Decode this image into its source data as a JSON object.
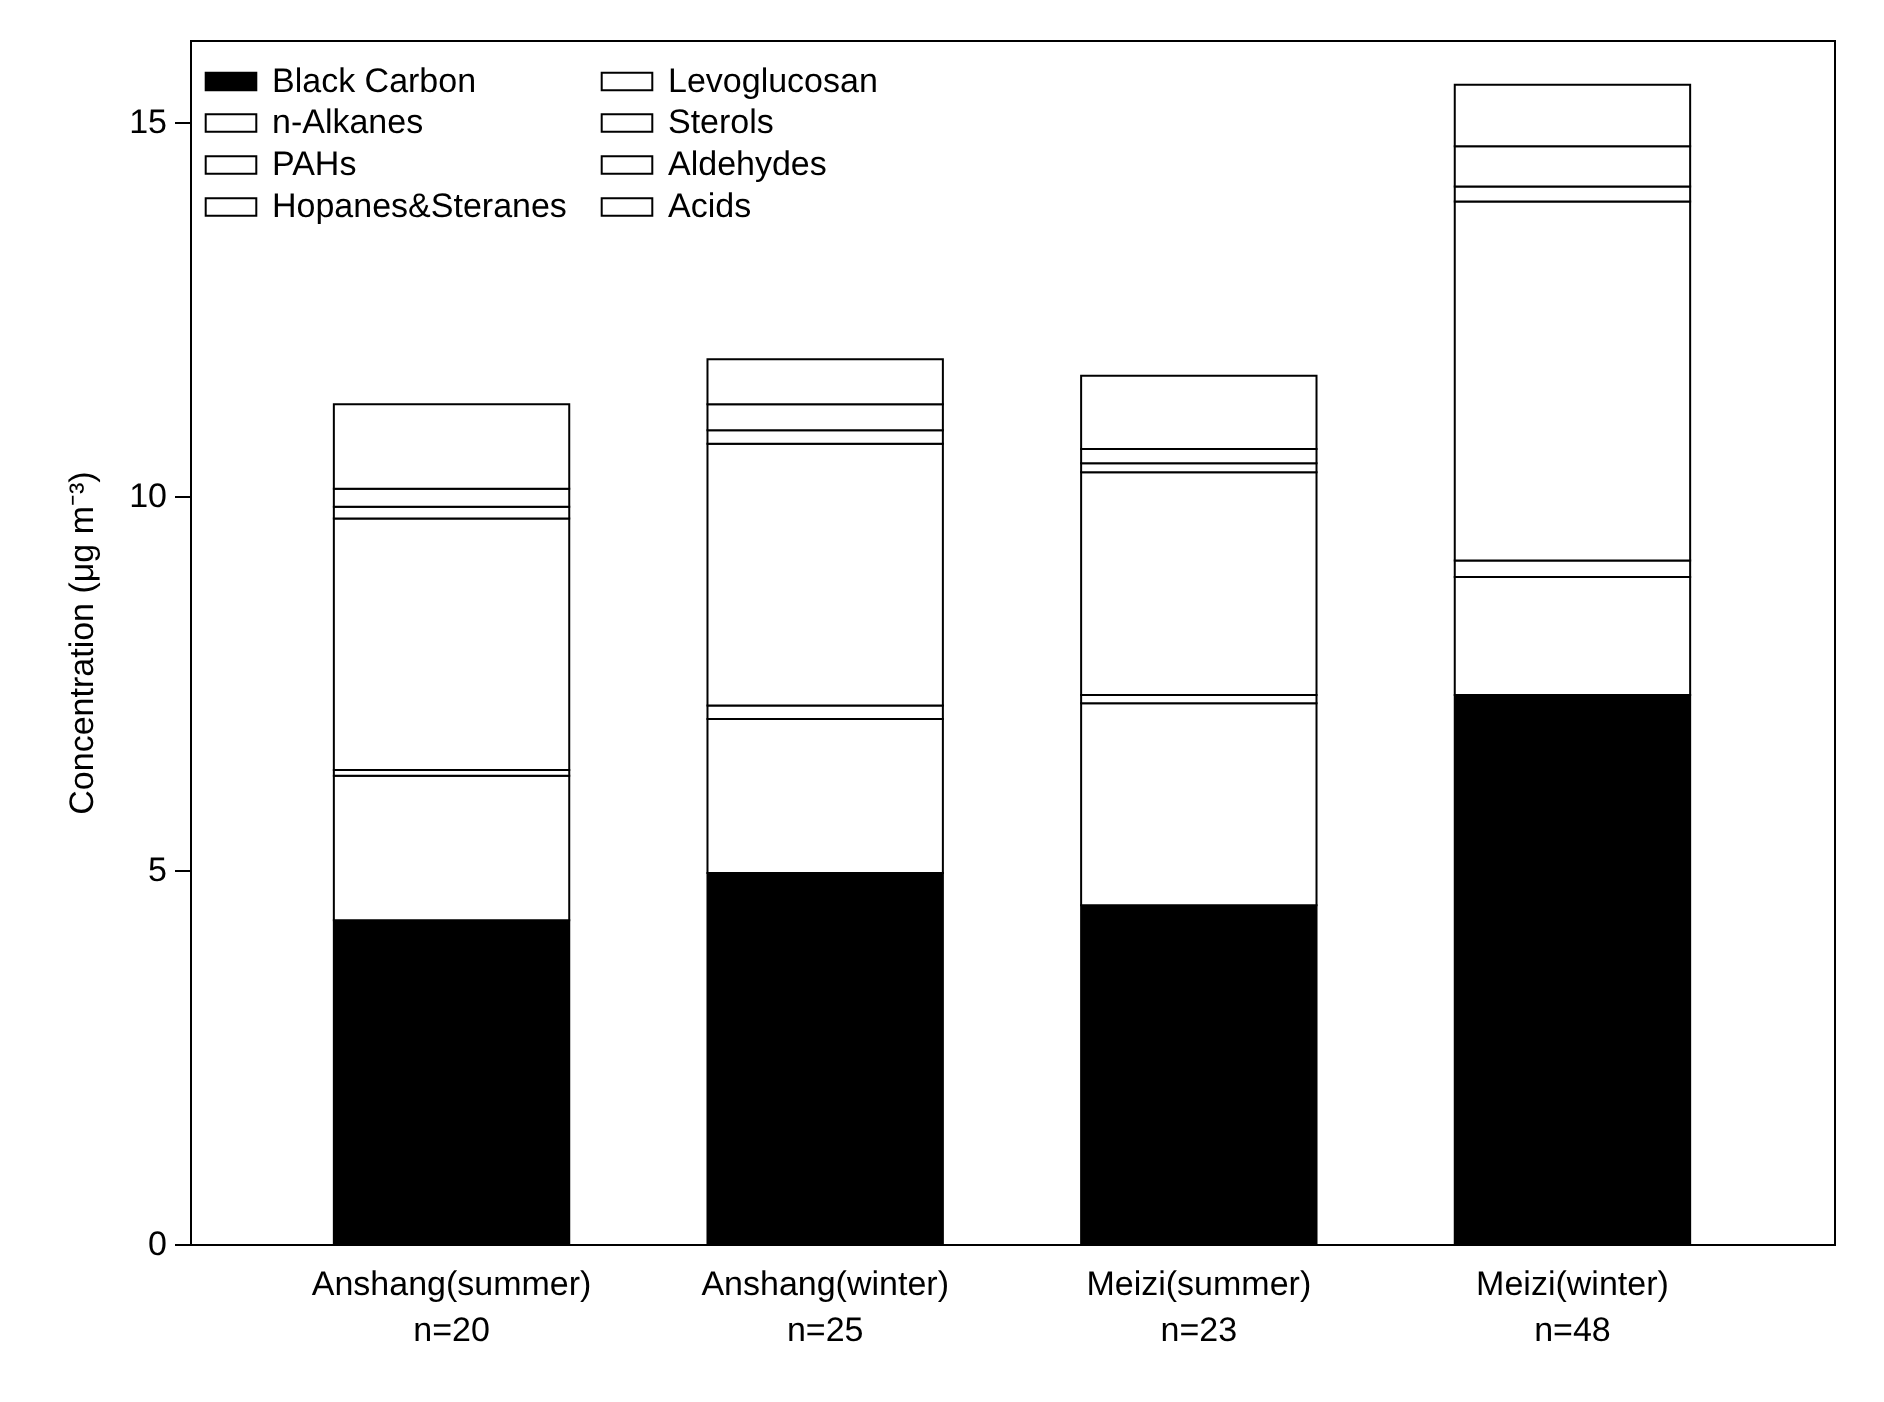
{
  "chart_data": {
    "type": "bar",
    "stacked": true,
    "ylabel": "Concentration (μg m⁻³)",
    "categories": [
      "Anshang(summer)\nn=20",
      "Anshang(winter)\nn=25",
      "Meizi(summer)\nn=23",
      "Meizi(winter)\nn=48"
    ],
    "series": [
      {
        "name": "Black Carbon",
        "color": "#000000",
        "values": [
          4.33,
          4.96,
          4.53,
          7.34
        ]
      },
      {
        "name": "n-Alkanes",
        "color": "#ffffff",
        "values": [
          1.93,
          2.06,
          2.7,
          1.58
        ]
      },
      {
        "name": "PAHs",
        "color": "#ffffff",
        "values": [
          0.08,
          0.18,
          0.11,
          0.22
        ]
      },
      {
        "name": "Hopanes&Steranes",
        "color": "#ffffff",
        "values": [
          null,
          null,
          null,
          null
        ]
      },
      {
        "name": "Levoglucosan",
        "color": "#ffffff",
        "values": [
          3.36,
          3.5,
          2.98,
          4.8
        ]
      },
      {
        "name": "Sterols",
        "color": "#ffffff",
        "values": [
          0.16,
          0.18,
          0.12,
          0.2
        ]
      },
      {
        "name": "Aldehydes",
        "color": "#ffffff",
        "values": [
          0.24,
          0.35,
          0.19,
          0.54
        ]
      },
      {
        "name": "Acids",
        "color": "#ffffff",
        "values": [
          1.13,
          0.6,
          0.98,
          0.82
        ]
      }
    ],
    "ylim": [
      0,
      16.1
    ],
    "yticks": [
      0,
      5,
      10,
      15
    ],
    "grid": false,
    "legend": "top left"
  }
}
